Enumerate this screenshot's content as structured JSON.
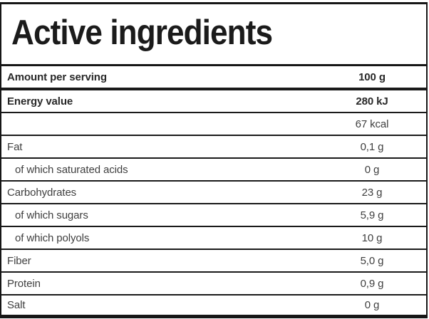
{
  "title": "Active ingredients",
  "colors": {
    "background": "#ffffff",
    "border": "#161616",
    "text_regular": "#3f3f3f",
    "text_bold": "#282828",
    "title_text": "#1b1b1b"
  },
  "table": {
    "rows": [
      {
        "label": "Amount per serving",
        "value": "100 g",
        "bold": true,
        "indent": false
      },
      {
        "label": "Energy value",
        "value": "280 kJ",
        "bold": true,
        "indent": false
      },
      {
        "label": "",
        "value": "67 kcal",
        "bold": false,
        "indent": false
      },
      {
        "label": "Fat",
        "value": "0,1 g",
        "bold": false,
        "indent": false
      },
      {
        "label": "of which saturated acids",
        "value": "0 g",
        "bold": false,
        "indent": true
      },
      {
        "label": "Carbohydrates",
        "value": "23 g",
        "bold": false,
        "indent": false
      },
      {
        "label": "of which sugars",
        "value": "5,9 g",
        "bold": false,
        "indent": true
      },
      {
        "label": "of which polyols",
        "value": "10 g",
        "bold": false,
        "indent": true
      },
      {
        "label": "Fiber",
        "value": "5,0 g",
        "bold": false,
        "indent": false
      },
      {
        "label": "Protein",
        "value": "0,9 g",
        "bold": false,
        "indent": false
      },
      {
        "label": "Salt",
        "value": "0 g",
        "bold": false,
        "indent": false
      }
    ]
  }
}
